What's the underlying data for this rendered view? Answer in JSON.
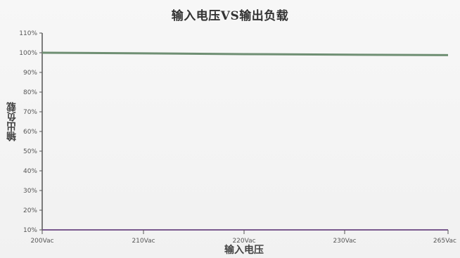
{
  "chart_data": {
    "type": "line",
    "title": "输入电压VS输出负载",
    "xlabel": "输入电压",
    "ylabel": "输出负载",
    "x_categories": [
      "200Vac",
      "210Vac",
      "220Vac",
      "230Vac",
      "265Vac"
    ],
    "y_ticks": [
      "10%",
      "20%",
      "30%",
      "40%",
      "50%",
      "60%",
      "70%",
      "80%",
      "90%",
      "100%",
      "110%"
    ],
    "ylim": [
      10,
      110
    ],
    "grid": false,
    "series": [
      {
        "x": [
          "200Vac",
          "210Vac",
          "220Vac",
          "230Vac",
          "265Vac"
        ],
        "values": [
          100,
          99.7,
          99.3,
          99,
          98.8
        ],
        "color": "#6f8f73"
      }
    ],
    "axis_color": "#7a5a8e"
  }
}
